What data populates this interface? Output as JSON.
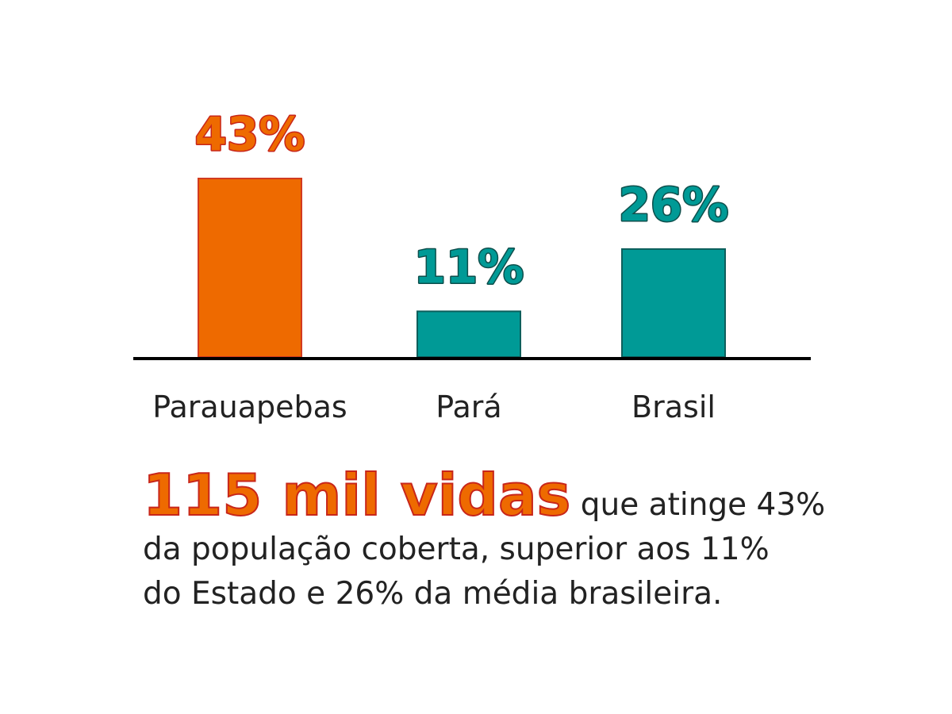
{
  "chart_data": {
    "type": "bar",
    "categories": [
      "Parauapebas",
      "Pará",
      "Brasil"
    ],
    "values": [
      43,
      11,
      26
    ],
    "value_labels": [
      "43%",
      "11%",
      "26%"
    ],
    "colors": [
      "#ee6a00",
      "#009a96",
      "#009a96"
    ],
    "label_colors": [
      "#ee6a00",
      "#009a96",
      "#009a96"
    ],
    "label_stroke_colors": [
      "#c8261a",
      "#0d4f4c",
      "#0d4f4c"
    ],
    "bar_stroke_colors": [
      "#d23b1f",
      "#0d5f5c",
      "#0d5f5c"
    ],
    "ylim": [
      0,
      43
    ],
    "grid": false,
    "legend": "none"
  },
  "caption": {
    "highlight": "115 mil vidas",
    "line1_rest": " que atinge 43%",
    "line2": "da população coberta, superior aos 11%",
    "line3": "do Estado e 26% da média brasileira.",
    "highlight_color": "#ee6a00"
  }
}
